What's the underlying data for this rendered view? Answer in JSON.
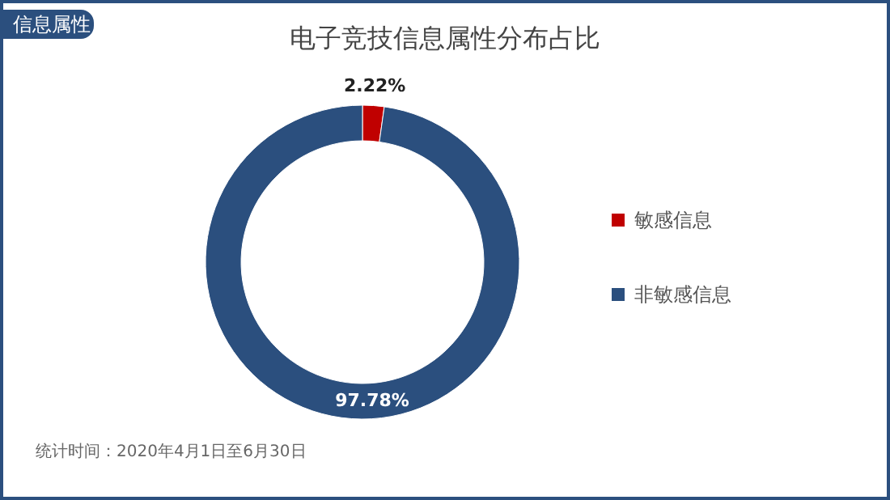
{
  "chart_data": {
    "type": "donut",
    "title": "电子竞技信息属性分布占比",
    "categories": [
      "敏感信息",
      "非敏感信息"
    ],
    "values": [
      2.22,
      97.78
    ],
    "colors": [
      "#c00000",
      "#2b4f7e"
    ],
    "value_labels": [
      "2.22%",
      "97.78%"
    ],
    "legend": "right",
    "annotations": [
      "信息属性",
      "统计时间：2020年4月1日至6月30日"
    ]
  }
}
